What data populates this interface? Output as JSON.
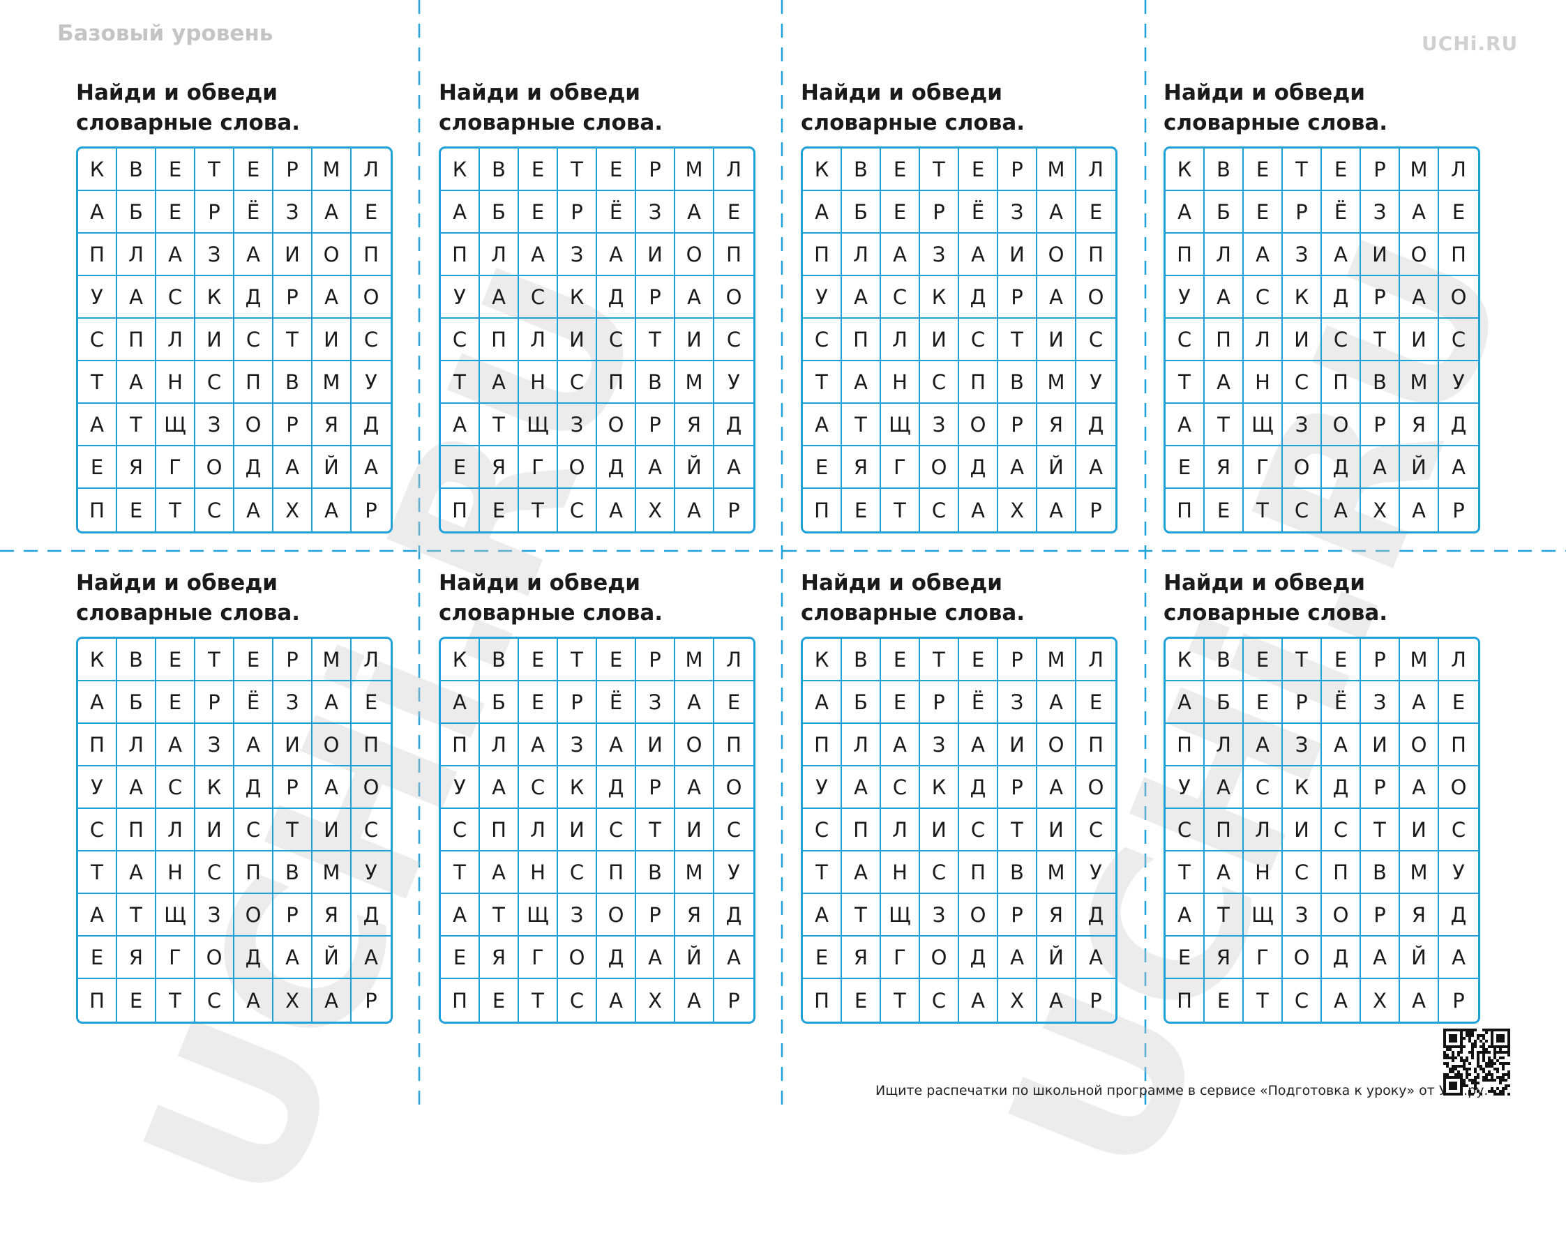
{
  "header": {
    "level": "Базовый уровень",
    "logo": "UCHi.RU"
  },
  "watermark": "UCHi.RU",
  "cards": [
    {
      "title": "Найди и обведи словарные слова.",
      "grid": [
        [
          "К",
          "В",
          "Е",
          "Т",
          "Е",
          "Р",
          "М",
          "Л"
        ],
        [
          "А",
          "Б",
          "Е",
          "Р",
          "Ё",
          "З",
          "А",
          "Е"
        ],
        [
          "П",
          "Л",
          "А",
          "З",
          "А",
          "И",
          "О",
          "П"
        ],
        [
          "У",
          "А",
          "С",
          "К",
          "Д",
          "Р",
          "А",
          "О"
        ],
        [
          "С",
          "П",
          "Л",
          "И",
          "С",
          "Т",
          "И",
          "С"
        ],
        [
          "Т",
          "А",
          "Н",
          "С",
          "П",
          "В",
          "М",
          "У"
        ],
        [
          "А",
          "Т",
          "Щ",
          "З",
          "О",
          "Р",
          "Я",
          "Д"
        ],
        [
          "Е",
          "Я",
          "Г",
          "О",
          "Д",
          "А",
          "Й",
          "А"
        ],
        [
          "П",
          "Е",
          "Т",
          "С",
          "А",
          "Х",
          "А",
          "Р"
        ]
      ]
    },
    {
      "title": "Найди и обведи словарные слова.",
      "grid": [
        [
          "К",
          "В",
          "Е",
          "Т",
          "Е",
          "Р",
          "М",
          "Л"
        ],
        [
          "А",
          "Б",
          "Е",
          "Р",
          "Ё",
          "З",
          "А",
          "Е"
        ],
        [
          "П",
          "Л",
          "А",
          "З",
          "А",
          "И",
          "О",
          "П"
        ],
        [
          "У",
          "А",
          "С",
          "К",
          "Д",
          "Р",
          "А",
          "О"
        ],
        [
          "С",
          "П",
          "Л",
          "И",
          "С",
          "Т",
          "И",
          "С"
        ],
        [
          "Т",
          "А",
          "Н",
          "С",
          "П",
          "В",
          "М",
          "У"
        ],
        [
          "А",
          "Т",
          "Щ",
          "З",
          "О",
          "Р",
          "Я",
          "Д"
        ],
        [
          "Е",
          "Я",
          "Г",
          "О",
          "Д",
          "А",
          "Й",
          "А"
        ],
        [
          "П",
          "Е",
          "Т",
          "С",
          "А",
          "Х",
          "А",
          "Р"
        ]
      ]
    },
    {
      "title": "Найди и обведи словарные слова.",
      "grid": [
        [
          "К",
          "В",
          "Е",
          "Т",
          "Е",
          "Р",
          "М",
          "Л"
        ],
        [
          "А",
          "Б",
          "Е",
          "Р",
          "Ё",
          "З",
          "А",
          "Е"
        ],
        [
          "П",
          "Л",
          "А",
          "З",
          "А",
          "И",
          "О",
          "П"
        ],
        [
          "У",
          "А",
          "С",
          "К",
          "Д",
          "Р",
          "А",
          "О"
        ],
        [
          "С",
          "П",
          "Л",
          "И",
          "С",
          "Т",
          "И",
          "С"
        ],
        [
          "Т",
          "А",
          "Н",
          "С",
          "П",
          "В",
          "М",
          "У"
        ],
        [
          "А",
          "Т",
          "Щ",
          "З",
          "О",
          "Р",
          "Я",
          "Д"
        ],
        [
          "Е",
          "Я",
          "Г",
          "О",
          "Д",
          "А",
          "Й",
          "А"
        ],
        [
          "П",
          "Е",
          "Т",
          "С",
          "А",
          "Х",
          "А",
          "Р"
        ]
      ]
    },
    {
      "title": "Найди и обведи словарные слова.",
      "grid": [
        [
          "К",
          "В",
          "Е",
          "Т",
          "Е",
          "Р",
          "М",
          "Л"
        ],
        [
          "А",
          "Б",
          "Е",
          "Р",
          "Ё",
          "З",
          "А",
          "Е"
        ],
        [
          "П",
          "Л",
          "А",
          "З",
          "А",
          "И",
          "О",
          "П"
        ],
        [
          "У",
          "А",
          "С",
          "К",
          "Д",
          "Р",
          "А",
          "О"
        ],
        [
          "С",
          "П",
          "Л",
          "И",
          "С",
          "Т",
          "И",
          "С"
        ],
        [
          "Т",
          "А",
          "Н",
          "С",
          "П",
          "В",
          "М",
          "У"
        ],
        [
          "А",
          "Т",
          "Щ",
          "З",
          "О",
          "Р",
          "Я",
          "Д"
        ],
        [
          "Е",
          "Я",
          "Г",
          "О",
          "Д",
          "А",
          "Й",
          "А"
        ],
        [
          "П",
          "Е",
          "Т",
          "С",
          "А",
          "Х",
          "А",
          "Р"
        ]
      ]
    },
    {
      "title": "Найди и обведи словарные слова.",
      "grid": [
        [
          "К",
          "В",
          "Е",
          "Т",
          "Е",
          "Р",
          "М",
          "Л"
        ],
        [
          "А",
          "Б",
          "Е",
          "Р",
          "Ё",
          "З",
          "А",
          "Е"
        ],
        [
          "П",
          "Л",
          "А",
          "З",
          "А",
          "И",
          "О",
          "П"
        ],
        [
          "У",
          "А",
          "С",
          "К",
          "Д",
          "Р",
          "А",
          "О"
        ],
        [
          "С",
          "П",
          "Л",
          "И",
          "С",
          "Т",
          "И",
          "С"
        ],
        [
          "Т",
          "А",
          "Н",
          "С",
          "П",
          "В",
          "М",
          "У"
        ],
        [
          "А",
          "Т",
          "Щ",
          "З",
          "О",
          "Р",
          "Я",
          "Д"
        ],
        [
          "Е",
          "Я",
          "Г",
          "О",
          "Д",
          "А",
          "Й",
          "А"
        ],
        [
          "П",
          "Е",
          "Т",
          "С",
          "А",
          "Х",
          "А",
          "Р"
        ]
      ]
    },
    {
      "title": "Найди и обведи словарные слова.",
      "grid": [
        [
          "К",
          "В",
          "Е",
          "Т",
          "Е",
          "Р",
          "М",
          "Л"
        ],
        [
          "А",
          "Б",
          "Е",
          "Р",
          "Ё",
          "З",
          "А",
          "Е"
        ],
        [
          "П",
          "Л",
          "А",
          "З",
          "А",
          "И",
          "О",
          "П"
        ],
        [
          "У",
          "А",
          "С",
          "К",
          "Д",
          "Р",
          "А",
          "О"
        ],
        [
          "С",
          "П",
          "Л",
          "И",
          "С",
          "Т",
          "И",
          "С"
        ],
        [
          "Т",
          "А",
          "Н",
          "С",
          "П",
          "В",
          "М",
          "У"
        ],
        [
          "А",
          "Т",
          "Щ",
          "З",
          "О",
          "Р",
          "Я",
          "Д"
        ],
        [
          "Е",
          "Я",
          "Г",
          "О",
          "Д",
          "А",
          "Й",
          "А"
        ],
        [
          "П",
          "Е",
          "Т",
          "С",
          "А",
          "Х",
          "А",
          "Р"
        ]
      ]
    },
    {
      "title": "Найди и обведи словарные слова.",
      "grid": [
        [
          "К",
          "В",
          "Е",
          "Т",
          "Е",
          "Р",
          "М",
          "Л"
        ],
        [
          "А",
          "Б",
          "Е",
          "Р",
          "Ё",
          "З",
          "А",
          "Е"
        ],
        [
          "П",
          "Л",
          "А",
          "З",
          "А",
          "И",
          "О",
          "П"
        ],
        [
          "У",
          "А",
          "С",
          "К",
          "Д",
          "Р",
          "А",
          "О"
        ],
        [
          "С",
          "П",
          "Л",
          "И",
          "С",
          "Т",
          "И",
          "С"
        ],
        [
          "Т",
          "А",
          "Н",
          "С",
          "П",
          "В",
          "М",
          "У"
        ],
        [
          "А",
          "Т",
          "Щ",
          "З",
          "О",
          "Р",
          "Я",
          "Д"
        ],
        [
          "Е",
          "Я",
          "Г",
          "О",
          "Д",
          "А",
          "Й",
          "А"
        ],
        [
          "П",
          "Е",
          "Т",
          "С",
          "А",
          "Х",
          "А",
          "Р"
        ]
      ]
    },
    {
      "title": "Найди и обведи словарные слова.",
      "grid": [
        [
          "К",
          "В",
          "Е",
          "Т",
          "Е",
          "Р",
          "М",
          "Л"
        ],
        [
          "А",
          "Б",
          "Е",
          "Р",
          "Ё",
          "З",
          "А",
          "Е"
        ],
        [
          "П",
          "Л",
          "А",
          "З",
          "А",
          "И",
          "О",
          "П"
        ],
        [
          "У",
          "А",
          "С",
          "К",
          "Д",
          "Р",
          "А",
          "О"
        ],
        [
          "С",
          "П",
          "Л",
          "И",
          "С",
          "Т",
          "И",
          "С"
        ],
        [
          "Т",
          "А",
          "Н",
          "С",
          "П",
          "В",
          "М",
          "У"
        ],
        [
          "А",
          "Т",
          "Щ",
          "З",
          "О",
          "Р",
          "Я",
          "Д"
        ],
        [
          "Е",
          "Я",
          "Г",
          "О",
          "Д",
          "А",
          "Й",
          "А"
        ],
        [
          "П",
          "Е",
          "Т",
          "С",
          "А",
          "Х",
          "А",
          "Р"
        ]
      ]
    }
  ],
  "footer": "Ищите распечатки по школьной программе в сервисе «Подготовка к уроку» от Учи.ру."
}
